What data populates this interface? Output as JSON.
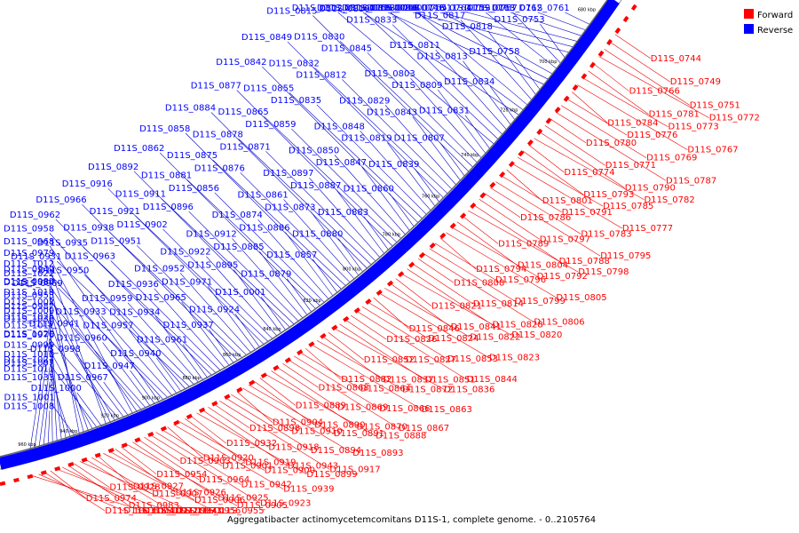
{
  "caption": "Aggregatibacter actinomycetemcomitans D11S-1, complete genome. - 0..2105764",
  "legend": [
    {
      "label": "Forward",
      "color": "#ff0000"
    },
    {
      "label": "Reverse",
      "color": "#0000ff"
    }
  ],
  "colors": {
    "forward": "#ff0000",
    "reverse": "#0000ff",
    "link_forward": "#ee0000",
    "link_reverse": "#0000cc"
  },
  "ticks": [
    "680 kbp",
    "700 kbp",
    "720 kbp",
    "740 kbp",
    "760 kbp",
    "780 kbp",
    "800 kbp",
    "820 kbp",
    "840 kbp",
    "860 kbp",
    "880 kbp",
    "900 kbp",
    "920 kbp",
    "940 kbp",
    "960 kbp"
  ],
  "reverse_labels": [
    "D11S_0761",
    "D11S_0762",
    "D11S_0763",
    "D11S_0764",
    "D11S_0746",
    "D11S_0748",
    "D11S_0753",
    "D11S_0757",
    "D11S_0759",
    "D11S_0765",
    "D11S_0768",
    "D11S_0755",
    "D11S_0758",
    "D11S_0818",
    "D11S_0817",
    "D11S_0840",
    "D11S_0838",
    "D11S_0816",
    "D11S_0834",
    "D11S_0813",
    "D11S_0811",
    "D11S_0833",
    "D11S_0810",
    "D11S_0802",
    "D11S_0831",
    "D11S_0809",
    "D11S_0803",
    "D11S_0845",
    "D11S_0830",
    "D11S_0815",
    "D11S_0807",
    "D11S_0843",
    "D11S_0829",
    "D11S_0812",
    "D11S_0832",
    "D11S_0849",
    "D11S_0839",
    "D11S_0819",
    "D11S_0848",
    "D11S_0835",
    "D11S_0855",
    "D11S_0842",
    "D11S_0860",
    "D11S_0847",
    "D11S_0850",
    "D11S_0859",
    "D11S_0865",
    "D11S_0877",
    "D11S_0883",
    "D11S_0887",
    "D11S_0897",
    "D11S_0871",
    "D11S_0878",
    "D11S_0884",
    "D11S_0880",
    "D11S_0873",
    "D11S_0861",
    "D11S_0876",
    "D11S_0875",
    "D11S_0858",
    "D11S_0857",
    "D11S_0886",
    "D11S_0874",
    "D11S_0856",
    "D11S_0881",
    "D11S_0862",
    "D11S_0879",
    "D11S_0885",
    "D11S_0912",
    "D11S_0896",
    "D11S_0911",
    "D11S_0892",
    "D11S_0001",
    "D11S_0895",
    "D11S_0922",
    "D11S_0902",
    "D11S_0921",
    "D11S_0916",
    "D11S_0924",
    "D11S_0971",
    "D11S_0952",
    "D11S_0951",
    "D11S_0938",
    "D11S_0966",
    "D11S_0937",
    "D11S_0965",
    "D11S_0936",
    "D11S_0963",
    "D11S_0935",
    "D11S_0962",
    "D11S_0961",
    "D11S_0934",
    "D11S_0959",
    "D11S_0950",
    "D11S_0931",
    "D11S_0958",
    "D11S_0940",
    "D11S_0957",
    "D11S_0933",
    "D11S_0969",
    "D11S_0949",
    "D11S_0968",
    "D11S_0947",
    "D11S_0960",
    "D11S_0941",
    "D11S_0953",
    "D11S_0980",
    "D11S_0979",
    "D11S_0967",
    "D11S_0998",
    "D11S_0976",
    "D11S_0987",
    "D11S_1018",
    "D11S_1012",
    "D11S_1000",
    "D11S_1027",
    "D11S_0999",
    "D11S_1025",
    "D11S_1002",
    "D11S_1022",
    "D11S_1001",
    "D11S_1011",
    "D11S_1010",
    "D11S_1017",
    "D11S_1009",
    "D11S_1034",
    "D11S_1008",
    "D11S_1033",
    "D11S_1007",
    "D11S_1020",
    "D11S_1036"
  ],
  "forward_labels": [
    "D11S_0744",
    "D11S_0749",
    "D11S_0751",
    "D11S_0772",
    "D11S_0766",
    "D11S_0781",
    "D11S_0773",
    "D11S_0767",
    "D11S_0784",
    "D11S_0776",
    "D11S_0769",
    "D11S_0787",
    "D11S_0780",
    "D11S_0771",
    "D11S_0790",
    "D11S_0782",
    "D11S_0774",
    "D11S_0793",
    "D11S_0785",
    "D11S_0777",
    "D11S_0801",
    "D11S_0791",
    "D11S_0783",
    "D11S_0795",
    "D11S_0786",
    "D11S_0797",
    "D11S_0788",
    "D11S_0798",
    "D11S_0789",
    "D11S_0804",
    "D11S_0792",
    "D11S_0805",
    "D11S_0794",
    "D11S_0796",
    "D11S_0799",
    "D11S_0806",
    "D11S_0808",
    "D11S_0814",
    "D11S_0828",
    "D11S_0820",
    "D11S_0821",
    "D11S_0841",
    "D11S_0822",
    "D11S_0823",
    "D11S_0846",
    "D11S_0824",
    "D11S_0853",
    "D11S_0844",
    "D11S_0826",
    "D11S_0827",
    "D11S_0851",
    "D11S_0836",
    "D11S_0852",
    "D11S_0837",
    "D11S_0872",
    "D11S_0863",
    "D11S_0882",
    "D11S_0864",
    "D11S_0866",
    "D11S_0867",
    "D11S_0868",
    "D11S_0869",
    "D11S_0870",
    "D11S_0888",
    "D11S_0889",
    "D11S_0890",
    "D11S_0891",
    "D11S_0893",
    "D11S_0904",
    "D11S_0910",
    "D11S_0894",
    "D11S_0917",
    "D11S_0898",
    "D11S_0918",
    "D11S_0943",
    "D11S_0899",
    "D11S_0932",
    "D11S_0919",
    "D11S_0900",
    "D11S_0939",
    "D11S_0920",
    "D11S_0901",
    "D11S_0942",
    "D11S_0923",
    "D11S_0903",
    "D11S_0964",
    "D11S_0925",
    "D11S_0905",
    "D11S_0954",
    "D11S_0926",
    "D11S_0906",
    "D11S_0955",
    "D11S_0927",
    "D11S_0907",
    "D11S_0973",
    "D11S_0956",
    "D11S_0928",
    "D11S_0983",
    "D11S_0972",
    "D11S_0984",
    "D11S_0974",
    "D11S_1003",
    "D11S_1004",
    "D11S_1021"
  ]
}
